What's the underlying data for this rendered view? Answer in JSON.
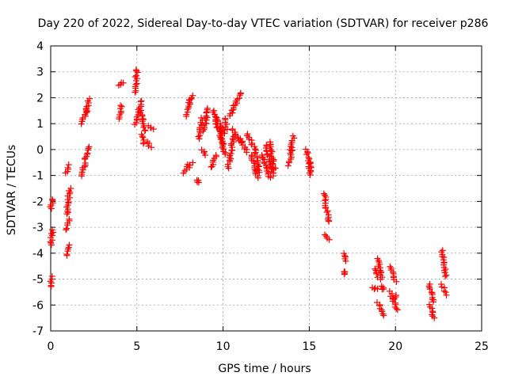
{
  "chart_data": {
    "type": "scatter",
    "title": "Day 220 of 2022, Sidereal Day-to-day VTEC variation (SDTVAR) for receiver p286",
    "xlabel": "GPS time / hours",
    "ylabel": "SDTVAR / TECUs",
    "xlim": [
      0,
      25
    ],
    "ylim": [
      -7,
      4
    ],
    "xticks": [
      0,
      5,
      10,
      15,
      20,
      25
    ],
    "yticks": [
      -7,
      -6,
      -5,
      -4,
      -3,
      -2,
      -1,
      0,
      1,
      2,
      3,
      4
    ],
    "grid": true,
    "marker": "plus",
    "color": "#ff0000",
    "segments": [
      {
        "x0": 0.0,
        "x1": 0.05,
        "y0": -5.3,
        "y1": -4.9
      },
      {
        "x0": 0.0,
        "x1": 0.1,
        "y0": -3.7,
        "y1": -3.1
      },
      {
        "x0": 0.0,
        "x1": 0.1,
        "y0": -2.3,
        "y1": -1.9
      },
      {
        "x0": 0.9,
        "x1": 1.05,
        "y0": -4.1,
        "y1": -3.7
      },
      {
        "x0": 0.9,
        "x1": 1.1,
        "y0": -3.1,
        "y1": -2.7
      },
      {
        "x0": 0.95,
        "x1": 1.1,
        "y0": -2.5,
        "y1": -1.5
      },
      {
        "x0": 0.9,
        "x1": 1.1,
        "y0": -0.9,
        "y1": -0.6
      },
      {
        "x0": 1.8,
        "x1": 2.0,
        "y0": -1.0,
        "y1": -0.5
      },
      {
        "x0": 2.0,
        "x1": 2.2,
        "y0": -0.4,
        "y1": 0.1
      },
      {
        "x0": 1.8,
        "x1": 2.1,
        "y0": 1.0,
        "y1": 1.6
      },
      {
        "x0": 2.1,
        "x1": 2.2,
        "y0": 1.4,
        "y1": 1.95
      },
      {
        "x0": 4.0,
        "x1": 4.2,
        "y0": 2.5,
        "y1": 2.6
      },
      {
        "x0": 4.0,
        "x1": 4.1,
        "y0": 1.2,
        "y1": 1.7
      },
      {
        "x0": 4.9,
        "x1": 5.0,
        "y0": 2.2,
        "y1": 3.1
      },
      {
        "x0": 4.9,
        "x1": 5.3,
        "y0": 1.0,
        "y1": 1.9
      },
      {
        "x0": 5.2,
        "x1": 5.5,
        "y0": 1.5,
        "y1": 0.7
      },
      {
        "x0": 5.3,
        "x1": 5.4,
        "y0": 0.6,
        "y1": 0.2
      },
      {
        "x0": 5.6,
        "x1": 5.8,
        "y0": 0.3,
        "y1": 0.1
      },
      {
        "x0": 5.7,
        "x1": 5.9,
        "y0": 0.9,
        "y1": 0.8
      },
      {
        "x0": 7.7,
        "x1": 8.0,
        "y0": -0.9,
        "y1": -0.6
      },
      {
        "x0": 8.0,
        "x1": 8.2,
        "y0": -0.7,
        "y1": -0.5
      },
      {
        "x0": 7.8,
        "x1": 8.1,
        "y0": 1.3,
        "y1": 1.9
      },
      {
        "x0": 8.0,
        "x1": 8.2,
        "y0": 1.8,
        "y1": 2.1
      },
      {
        "x0": 8.5,
        "x1": 8.6,
        "y0": -1.2,
        "y1": -1.25
      },
      {
        "x0": 8.6,
        "x1": 8.8,
        "y0": 0.4,
        "y1": 1.2
      },
      {
        "x0": 8.8,
        "x1": 9.0,
        "y0": 0.0,
        "y1": -0.2
      },
      {
        "x0": 8.9,
        "x1": 9.1,
        "y0": 0.7,
        "y1": 1.6
      },
      {
        "x0": 9.3,
        "x1": 9.6,
        "y0": -0.7,
        "y1": -0.2
      },
      {
        "x0": 9.4,
        "x1": 10.0,
        "y0": 1.5,
        "y1": 0.2
      },
      {
        "x0": 9.6,
        "x1": 10.1,
        "y0": 1.2,
        "y1": 0.6
      },
      {
        "x0": 9.8,
        "x1": 10.1,
        "y0": 0.8,
        "y1": -0.2
      },
      {
        "x0": 10.1,
        "x1": 10.2,
        "y0": 1.2,
        "y1": 0.8
      },
      {
        "x0": 10.3,
        "x1": 10.6,
        "y0": -0.7,
        "y1": 0.5
      },
      {
        "x0": 10.4,
        "x1": 11.0,
        "y0": 1.3,
        "y1": 2.2
      },
      {
        "x0": 10.5,
        "x1": 11.0,
        "y0": 0.8,
        "y1": 0.3
      },
      {
        "x0": 11.0,
        "x1": 11.4,
        "y0": 0.4,
        "y1": -0.1
      },
      {
        "x0": 11.4,
        "x1": 11.7,
        "y0": 0.6,
        "y1": 0.2
      },
      {
        "x0": 11.6,
        "x1": 12.0,
        "y0": -0.2,
        "y1": -1.1
      },
      {
        "x0": 11.8,
        "x1": 12.1,
        "y0": 0.1,
        "y1": -0.9
      },
      {
        "x0": 12.3,
        "x1": 12.7,
        "y0": -0.2,
        "y1": -1.1
      },
      {
        "x0": 12.5,
        "x1": 12.9,
        "y0": 0.2,
        "y1": -1.0
      },
      {
        "x0": 12.7,
        "x1": 13.0,
        "y0": 0.3,
        "y1": -0.8
      },
      {
        "x0": 13.8,
        "x1": 14.0,
        "y0": -0.6,
        "y1": 0.0
      },
      {
        "x0": 13.9,
        "x1": 14.1,
        "y0": 0.0,
        "y1": 0.5
      },
      {
        "x0": 14.8,
        "x1": 15.1,
        "y0": 0.0,
        "y1": -0.7
      },
      {
        "x0": 15.0,
        "x1": 15.1,
        "y0": -0.5,
        "y1": -1.0
      },
      {
        "x0": 15.9,
        "x1": 16.1,
        "y0": -1.7,
        "y1": -2.8
      },
      {
        "x0": 15.9,
        "x1": 16.1,
        "y0": -3.3,
        "y1": -3.5
      },
      {
        "x0": 17.0,
        "x1": 17.1,
        "y0": -4.0,
        "y1": -4.3
      },
      {
        "x0": 17.0,
        "x1": 17.1,
        "y0": -4.7,
        "y1": -4.8
      },
      {
        "x0": 18.7,
        "x1": 18.9,
        "y0": -5.3,
        "y1": -5.4
      },
      {
        "x0": 18.8,
        "x1": 19.0,
        "y0": -4.6,
        "y1": -4.9
      },
      {
        "x0": 19.0,
        "x1": 19.2,
        "y0": -4.2,
        "y1": -5.0
      },
      {
        "x0": 19.0,
        "x1": 19.3,
        "y0": -5.9,
        "y1": -6.4
      },
      {
        "x0": 19.2,
        "x1": 19.3,
        "y0": -5.3,
        "y1": -5.4
      },
      {
        "x0": 19.7,
        "x1": 20.0,
        "y0": -4.5,
        "y1": -5.1
      },
      {
        "x0": 19.7,
        "x1": 20.1,
        "y0": -5.5,
        "y1": -6.2
      },
      {
        "x0": 19.9,
        "x1": 20.1,
        "y0": -5.8,
        "y1": -5.6
      },
      {
        "x0": 22.0,
        "x1": 22.2,
        "y0": -5.2,
        "y1": -5.9
      },
      {
        "x0": 22.0,
        "x1": 22.2,
        "y0": -6.0,
        "y1": -6.5
      },
      {
        "x0": 22.7,
        "x1": 22.9,
        "y0": -3.9,
        "y1": -4.9
      },
      {
        "x0": 22.7,
        "x1": 22.9,
        "y0": -5.2,
        "y1": -5.6
      }
    ]
  }
}
